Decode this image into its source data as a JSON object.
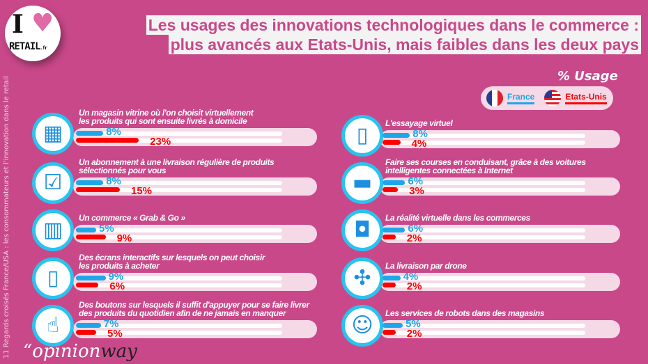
{
  "header": {
    "logo": "I ♥ RETAIL.fr",
    "title_line1": "Les usages des innovations technologiques dans le commerce :",
    "title_line2": "plus avancés aux Etats-Unis, mais faibles dans les deux pays"
  },
  "sidebar_text": "11   Regards croisés France/USA : les consommateurs et l'innovation dans le retail",
  "footer": {
    "brand_a": "“opinion",
    "brand_b": "way"
  },
  "colors": {
    "background": "#c9488a",
    "france": "#1ea7e8",
    "usa": "#ff0000",
    "track": "#f5d9e7"
  },
  "chart_data": {
    "type": "bar",
    "title": "% Usage",
    "unit": "%",
    "legend": {
      "placement": "top-right",
      "entries": [
        "France",
        "Etats-Unis"
      ]
    },
    "categories": [
      "Un magasin vitrine où l'on choisit virtuellement\nles produits qui sont ensuite livrés à domicile",
      "Un abonnement à une livraison régulière de produits\nsélectionnés pour vous",
      "Un commerce « Grab & Go »",
      "Des écrans interactifs sur lesquels on peut choisir\nles produits à acheter",
      "Des boutons sur lesquels il suffit d'appuyer pour se faire livrer\ndes produits du quotidien afin de ne jamais en manquer",
      "L'essayage virtuel",
      "Faire ses courses en conduisant, grâce à des voitures\nintelligentes connectées à Internet",
      "La réalité virtuelle dans les commerces",
      "La livraison par drone",
      "Les services de robots dans des magasins"
    ],
    "icons": [
      "storefront-icon",
      "subscription-box-icon",
      "vending-machine-icon",
      "touchscreen-basket-icon",
      "press-button-hand-icon",
      "phone-hanger-icon",
      "car-icon",
      "vr-headset-icon",
      "drone-icon",
      "robot-icon"
    ],
    "series": [
      {
        "name": "France",
        "values": [
          8,
          8,
          5,
          9,
          7,
          8,
          6,
          6,
          4,
          5
        ]
      },
      {
        "name": "Etats-Unis",
        "values": [
          23,
          15,
          9,
          6,
          5,
          4,
          3,
          2,
          2,
          2
        ]
      }
    ]
  }
}
